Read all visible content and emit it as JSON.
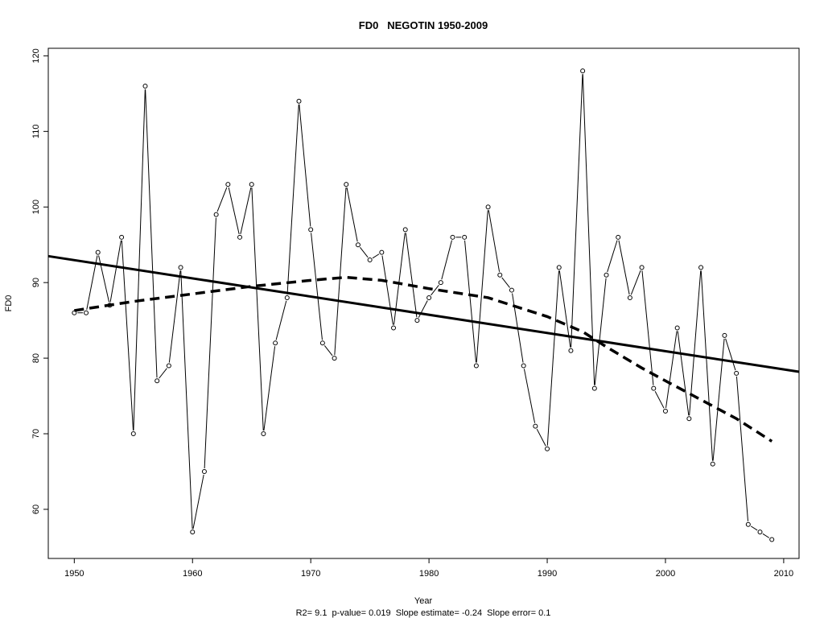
{
  "chart_data": {
    "type": "line",
    "title": "FD0   NEGOTIN 1950-2009",
    "xlabel": "Year",
    "ylabel": "FD0",
    "stats_line": "R2= 9.1  p-value= 0.019  Slope estimate= -0.24  Slope error= 0.1",
    "xlim": [
      1947.8,
      2011.3
    ],
    "ylim": [
      53.5,
      121.0
    ],
    "x_ticks": [
      1950,
      1960,
      1970,
      1980,
      1990,
      2000,
      2010
    ],
    "y_ticks": [
      60,
      70,
      80,
      90,
      100,
      110,
      120
    ],
    "grid": false,
    "legend": "none",
    "x": [
      1950,
      1951,
      1952,
      1953,
      1954,
      1955,
      1956,
      1957,
      1958,
      1959,
      1960,
      1961,
      1962,
      1963,
      1964,
      1965,
      1966,
      1967,
      1968,
      1969,
      1970,
      1971,
      1972,
      1973,
      1974,
      1975,
      1976,
      1977,
      1978,
      1979,
      1980,
      1981,
      1982,
      1983,
      1984,
      1985,
      1986,
      1987,
      1988,
      1989,
      1990,
      1991,
      1992,
      1993,
      1994,
      1995,
      1996,
      1997,
      1998,
      1999,
      2000,
      2001,
      2002,
      2003,
      2004,
      2005,
      2006,
      2007,
      2008,
      2009
    ],
    "series": [
      {
        "values": [
          86,
          86,
          94,
          87,
          96,
          70,
          116,
          77,
          79,
          92,
          57,
          65,
          99,
          103,
          96,
          103,
          70,
          82,
          88,
          114,
          97,
          82,
          80,
          103,
          95,
          93,
          94,
          84,
          97,
          85,
          88,
          90,
          96,
          96,
          79,
          100,
          91,
          89,
          79,
          71,
          68,
          92,
          81,
          118,
          76,
          91,
          96,
          88,
          92,
          76,
          73,
          84,
          72,
          92,
          66,
          83,
          78,
          58,
          57,
          56
        ]
      }
    ],
    "linear_trend": {
      "x": [
        1947.8,
        2011.3
      ],
      "y": [
        93.5,
        78.2
      ]
    },
    "smooth_trend": {
      "x": [
        1950,
        1955,
        1960,
        1965,
        1970,
        1973,
        1976,
        1980,
        1985,
        1990,
        1993,
        1995,
        1998,
        2000,
        2003,
        2006,
        2009
      ],
      "y": [
        86.3,
        87.5,
        88.5,
        89.5,
        90.3,
        90.7,
        90.3,
        89.2,
        88.0,
        85.5,
        83.5,
        81.5,
        78.7,
        77.0,
        74.5,
        72.0,
        69.0
      ]
    },
    "colors": {
      "line": "#000000",
      "background": "#ffffff"
    }
  }
}
